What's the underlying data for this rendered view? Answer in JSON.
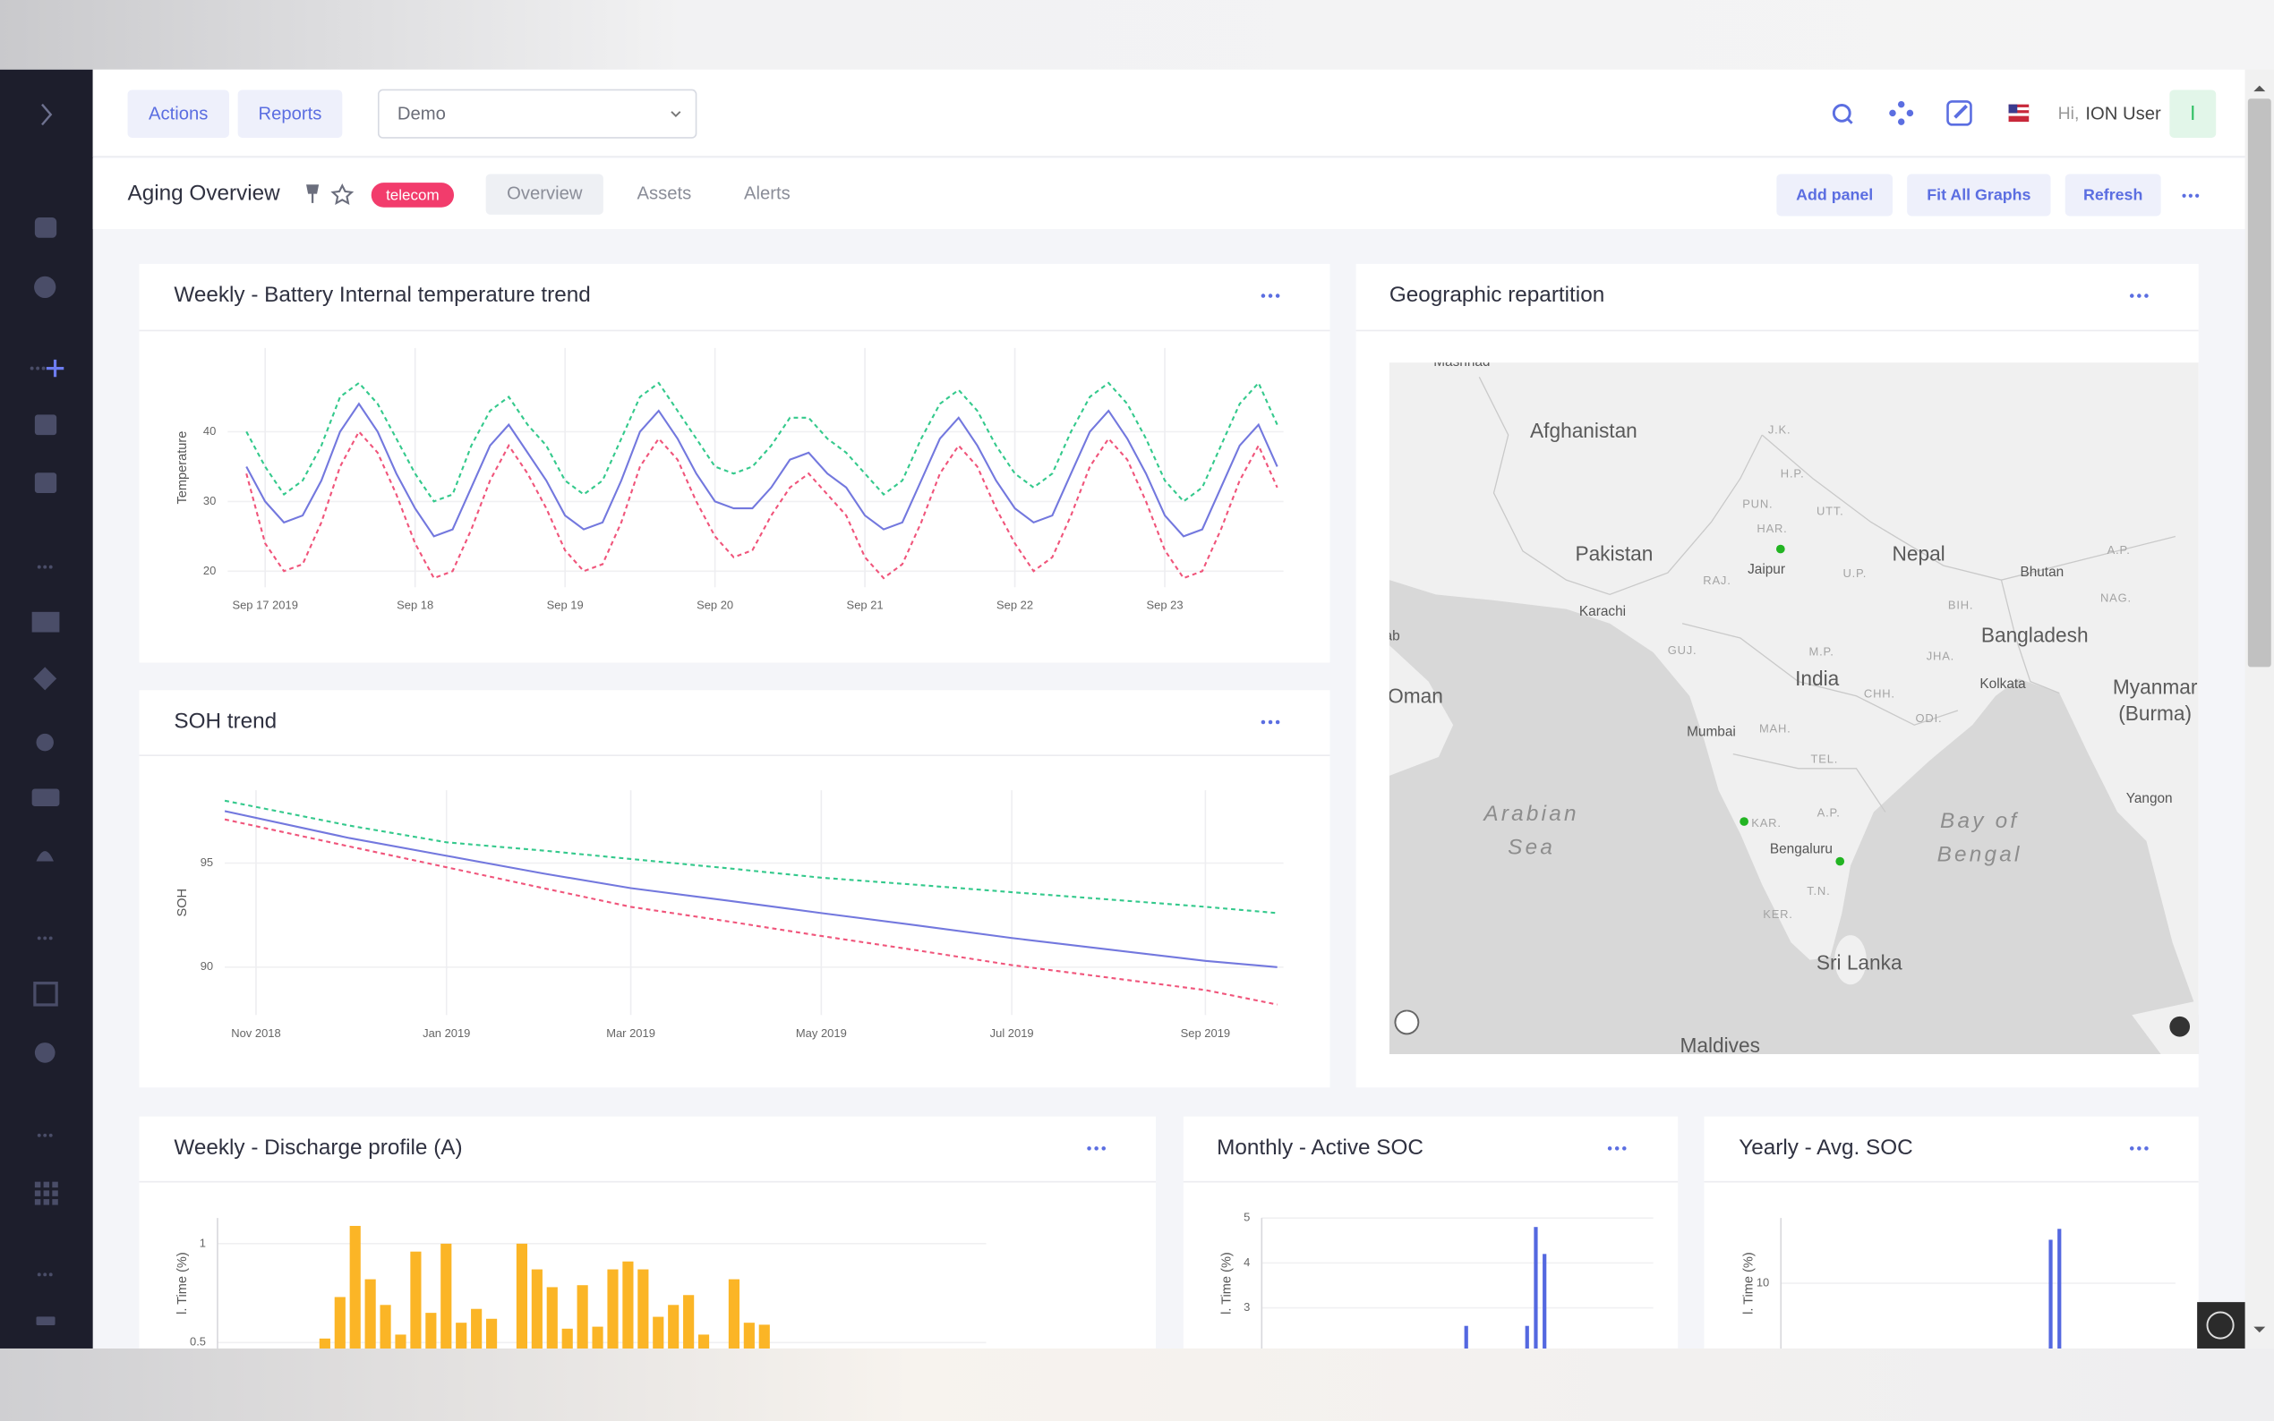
{
  "nav": {
    "buttons": [
      "Actions",
      "Reports"
    ],
    "select": "Demo",
    "greeting": "Hi,",
    "user": "ION User",
    "avatar": "I"
  },
  "header": {
    "title": "Aging Overview",
    "tag": "telecom",
    "tabs": [
      "Overview",
      "Assets",
      "Alerts"
    ],
    "actions": [
      "Add panel",
      "Fit All Graphs",
      "Refresh"
    ]
  },
  "map": {
    "title": "Geographic repartition",
    "labels": [
      "Mashhad",
      "Afghanistan",
      "Pakistan",
      "Nepal",
      "Bhutan",
      "Bangladesh",
      "India",
      "Oman",
      "Myanmar",
      "(Burma)",
      "Arabian",
      "Sea",
      "Bay of",
      "Bengal",
      "Sri Lanka",
      "Maldives",
      "Karachi",
      "Jaipur",
      "Mumbai",
      "Bengaluru",
      "Kolkata",
      "Yangon",
      "J.K.",
      "H.P.",
      "PUN.",
      "UTT.",
      "HAR.",
      "RAJ.",
      "U.P.",
      "BIH.",
      "NAG.",
      "GUJ.",
      "M.P.",
      "JHA.",
      "CHH.",
      "MAH.",
      "ODI.",
      "TEL.",
      "A.P.",
      "KAR.",
      "T.N.",
      "KER.",
      "A.P.",
      "ab"
    ],
    "markers": [
      {
        "lat": 28.1,
        "lon": 76.7,
        "color": "#22b422"
      },
      {
        "lat": 15.1,
        "lon": 74.8,
        "color": "#22b422"
      },
      {
        "lat": 13.2,
        "lon": 79.8,
        "color": "#22b422"
      }
    ]
  },
  "chart_data": [
    {
      "type": "line",
      "title": "Weekly - Battery Internal temperature trend",
      "ylabel": "Temperature",
      "grid": true,
      "x": [
        "2019-09-16T21:00",
        "2019-09-17T00:00",
        "2019-09-17T03:00",
        "2019-09-17T06:00",
        "2019-09-17T09:00",
        "2019-09-17T12:00",
        "2019-09-17T15:00",
        "2019-09-17T18:00",
        "2019-09-17T21:00",
        "2019-09-18T00:00",
        "2019-09-18T03:00",
        "2019-09-18T06:00",
        "2019-09-18T09:00",
        "2019-09-18T12:00",
        "2019-09-18T15:00",
        "2019-09-18T18:00",
        "2019-09-18T21:00",
        "2019-09-19T00:00",
        "2019-09-19T03:00",
        "2019-09-19T06:00",
        "2019-09-19T09:00",
        "2019-09-19T12:00",
        "2019-09-19T15:00",
        "2019-09-19T18:00",
        "2019-09-19T21:00",
        "2019-09-20T00:00",
        "2019-09-20T03:00",
        "2019-09-20T06:00",
        "2019-09-20T09:00",
        "2019-09-20T12:00",
        "2019-09-20T15:00",
        "2019-09-20T18:00",
        "2019-09-20T21:00",
        "2019-09-21T00:00",
        "2019-09-21T03:00",
        "2019-09-21T06:00",
        "2019-09-21T09:00",
        "2019-09-21T12:00",
        "2019-09-21T15:00",
        "2019-09-21T18:00",
        "2019-09-21T21:00",
        "2019-09-22T00:00",
        "2019-09-22T03:00",
        "2019-09-22T06:00",
        "2019-09-22T09:00",
        "2019-09-22T12:00",
        "2019-09-22T15:00",
        "2019-09-22T18:00",
        "2019-09-22T21:00",
        "2019-09-23T00:00",
        "2019-09-23T03:00",
        "2019-09-23T06:00",
        "2019-09-23T09:00",
        "2019-09-23T12:00",
        "2019-09-23T15:00",
        "2019-09-23T18:00"
      ],
      "series": [
        {
          "color": "#34c98c",
          "dashed": true,
          "values": [
            40,
            35,
            31,
            33,
            38,
            45,
            47,
            44,
            39,
            34,
            30,
            31,
            38,
            43,
            45,
            41,
            38,
            33,
            31,
            33,
            39,
            45,
            47,
            43,
            39,
            35,
            34,
            35,
            38,
            42,
            42,
            39,
            37,
            34,
            31,
            33,
            39,
            44,
            46,
            43,
            38,
            34,
            32,
            34,
            40,
            45,
            47,
            44,
            39,
            33,
            30,
            32,
            38,
            44,
            47,
            41
          ]
        },
        {
          "color": "#7378de",
          "dashed": false,
          "values": [
            35,
            30,
            27,
            28,
            33,
            40,
            44,
            40,
            34,
            29,
            25,
            26,
            32,
            38,
            41,
            37,
            33,
            28,
            26,
            27,
            33,
            40,
            43,
            39,
            34,
            30,
            29,
            29,
            32,
            36,
            37,
            34,
            32,
            28,
            26,
            27,
            33,
            39,
            42,
            38,
            33,
            29,
            27,
            28,
            34,
            40,
            43,
            39,
            34,
            28,
            25,
            26,
            32,
            38,
            41,
            35
          ]
        },
        {
          "color": "#f0557b",
          "dashed": true,
          "values": [
            34,
            24,
            20,
            21,
            27,
            35,
            40,
            37,
            31,
            24,
            19,
            20,
            26,
            33,
            38,
            34,
            29,
            23,
            20,
            21,
            27,
            35,
            39,
            36,
            30,
            25,
            22,
            23,
            28,
            32,
            34,
            31,
            28,
            22,
            19,
            21,
            27,
            34,
            38,
            35,
            29,
            24,
            20,
            22,
            28,
            35,
            39,
            36,
            30,
            23,
            19,
            20,
            26,
            33,
            38,
            32
          ]
        }
      ],
      "xlim": [
        "2019-09-16T18:00",
        "2019-09-23T19:00"
      ],
      "xticks": [
        {
          "value": "2019-09-17T00:00",
          "label": "Sep 17 2019"
        },
        {
          "value": "2019-09-18T00:00",
          "label": "Sep 18"
        },
        {
          "value": "2019-09-19T00:00",
          "label": "Sep 19"
        },
        {
          "value": "2019-09-20T00:00",
          "label": "Sep 20"
        },
        {
          "value": "2019-09-21T00:00",
          "label": "Sep 21"
        },
        {
          "value": "2019-09-22T00:00",
          "label": "Sep 22"
        },
        {
          "value": "2019-09-23T00:00",
          "label": "Sep 23"
        }
      ],
      "ylim": [
        17.7,
        52
      ],
      "yticks": [
        20,
        30,
        40
      ]
    },
    {
      "type": "line",
      "title": "SOH trend",
      "ylabel": "SOH",
      "grid": true,
      "x": [
        "2018-10-22",
        "2018-12-01",
        "2019-01-01",
        "2019-02-01",
        "2019-03-01",
        "2019-04-01",
        "2019-05-01",
        "2019-06-01",
        "2019-07-01",
        "2019-08-01",
        "2019-09-01",
        "2019-09-24"
      ],
      "series": [
        {
          "color": "#34c98c",
          "dashed": true,
          "values": [
            98.0,
            96.8,
            96.0,
            95.6,
            95.2,
            94.75,
            94.3,
            93.95,
            93.6,
            93.25,
            92.9,
            92.6
          ]
        },
        {
          "color": "#7378de",
          "dashed": false,
          "values": [
            97.5,
            96.2,
            95.35,
            94.5,
            93.8,
            93.2,
            92.6,
            92.0,
            91.4,
            90.85,
            90.3,
            90.0
          ]
        },
        {
          "color": "#f0557b",
          "dashed": true,
          "values": [
            97.1,
            95.8,
            94.8,
            93.8,
            92.9,
            92.2,
            91.5,
            90.8,
            90.1,
            89.5,
            88.9,
            88.2
          ]
        }
      ],
      "xlim": [
        "2018-10-22",
        "2019-09-26"
      ],
      "xticks": [
        {
          "value": "2018-11-01",
          "label": "Nov 2018"
        },
        {
          "value": "2019-01-01",
          "label": "Jan 2019"
        },
        {
          "value": "2019-03-01",
          "label": "Mar 2019"
        },
        {
          "value": "2019-05-01",
          "label": "May 2019"
        },
        {
          "value": "2019-07-01",
          "label": "Jul 2019"
        },
        {
          "value": "2019-09-01",
          "label": "Sep 2019"
        }
      ],
      "ylim": [
        87.7,
        98.5
      ],
      "yticks": [
        90,
        95
      ]
    },
    {
      "type": "bar",
      "title": "Weekly - Discharge profile (A)",
      "ylabel": "l. Time (%)",
      "color": "#fbb526",
      "grid": true,
      "values": [
        0.52,
        0.73,
        1.09,
        0.82,
        0.69,
        0.54,
        0.96,
        0.65,
        1.0,
        0.6,
        0.67,
        0.62,
        null,
        1.0,
        0.87,
        0.78,
        0.57,
        0.79,
        0.58,
        0.87,
        0.91,
        0.87,
        0.63,
        0.69,
        0.74,
        0.54,
        null,
        0.82,
        0.6,
        0.59
      ],
      "ylim": [
        0,
        1.13
      ],
      "yticks": [
        0.5,
        1
      ]
    },
    {
      "type": "bar",
      "title": "Monthly - Active SOC",
      "ylabel": "l. Time (%)",
      "color": "#5468e0",
      "grid": true,
      "values": [
        null,
        null,
        null,
        null,
        null,
        null,
        null,
        null,
        null,
        null,
        null,
        null,
        null,
        null,
        null,
        null,
        null,
        null,
        null,
        null,
        null,
        null,
        null,
        2.6,
        null,
        null,
        null,
        null,
        null,
        null,
        2.6,
        4.8,
        4.2,
        null,
        null,
        null,
        null,
        null,
        null,
        null,
        null,
        null,
        null,
        null,
        null
      ],
      "ylim": [
        0,
        5
      ],
      "yticks": [
        3,
        4,
        5
      ]
    },
    {
      "type": "bar",
      "title": "Yearly - Avg. SOC",
      "ylabel": "l. Time (%)",
      "color": "#5468e0",
      "grid": true,
      "values": [
        null,
        null,
        null,
        null,
        null,
        null,
        null,
        null,
        null,
        null,
        null,
        null,
        null,
        null,
        null,
        null,
        null,
        null,
        null,
        null,
        null,
        null,
        null,
        null,
        null,
        null,
        null,
        null,
        null,
        null,
        null,
        14,
        15,
        null,
        null,
        null,
        null,
        null,
        null,
        null,
        null,
        null,
        null,
        null,
        null
      ],
      "ylim": [
        0,
        16
      ],
      "yticks": [
        10
      ]
    }
  ]
}
